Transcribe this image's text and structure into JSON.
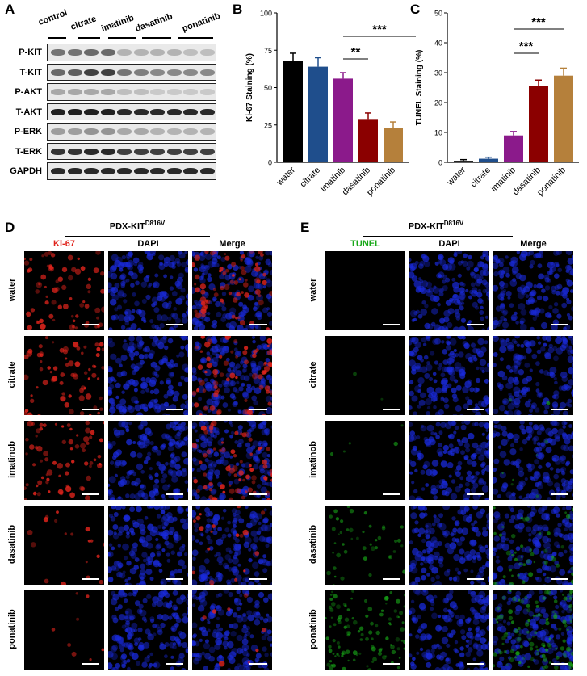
{
  "panels": {
    "A": "A",
    "B": "B",
    "C": "C",
    "D": "D",
    "E": "E"
  },
  "western": {
    "groups": [
      "control",
      "citrate",
      "imatinib",
      "dasatinib",
      "ponatinib"
    ],
    "rows": [
      "P-KIT",
      "T-KIT",
      "P-AKT",
      "T-AKT",
      "P-ERK",
      "T-ERK",
      "GAPDH"
    ]
  },
  "chart_data": [
    {
      "type": "bar",
      "categories": [
        "water",
        "citrate",
        "imatinib",
        "dasatinib",
        "ponatinib"
      ],
      "values": [
        68,
        64,
        56,
        29,
        23
      ],
      "errors": [
        5,
        6,
        4,
        4,
        4
      ],
      "colors": [
        "#000000",
        "#1f4e8c",
        "#8b1a8b",
        "#8b0000",
        "#b5803b"
      ],
      "title": "",
      "xlabel": "",
      "ylabel": "Ki-67 Staining (%)",
      "ylim": [
        0,
        100
      ],
      "yticks": [
        0,
        25,
        50,
        75,
        100
      ],
      "significance": [
        {
          "label": "**",
          "from": "imatinib",
          "to": "dasatinib"
        },
        {
          "label": "***",
          "from": "imatinib",
          "to": "ponatinib"
        }
      ]
    },
    {
      "type": "bar",
      "categories": [
        "water",
        "citrate",
        "imatinib",
        "dasatinib",
        "ponatinib"
      ],
      "values": [
        0.5,
        1.2,
        9,
        25.5,
        29
      ],
      "errors": [
        0.4,
        0.5,
        1.3,
        2,
        2.5
      ],
      "colors": [
        "#000000",
        "#1f4e8c",
        "#8b1a8b",
        "#8b0000",
        "#b5803b"
      ],
      "title": "",
      "xlabel": "",
      "ylabel": "TUNEL Staining (%)",
      "ylim": [
        0,
        50
      ],
      "yticks": [
        0,
        10,
        20,
        30,
        40,
        50
      ],
      "significance": [
        {
          "label": "***",
          "from": "imatinib",
          "to": "dasatinib"
        },
        {
          "label": "***",
          "from": "imatinib",
          "to": "ponatinib"
        }
      ]
    }
  ],
  "panelD": {
    "title": "PDX-KIT",
    "superscript": "D816V",
    "columns": [
      "Ki-67",
      "DAPI",
      "Merge"
    ],
    "rows": [
      "water",
      "citrate",
      "imatinob",
      "dasatinib",
      "ponatinib"
    ]
  },
  "panelE": {
    "title": "PDX-KIT",
    "superscript": "D816V",
    "columns": [
      "TUNEL",
      "DAPI",
      "Merge"
    ],
    "rows": [
      "water",
      "citrate",
      "imatinob",
      "dasatinib",
      "ponatinib"
    ]
  },
  "colors": {
    "ki67": "#e0241c",
    "tunel": "#18a818",
    "dapi": "#1a2be0"
  }
}
